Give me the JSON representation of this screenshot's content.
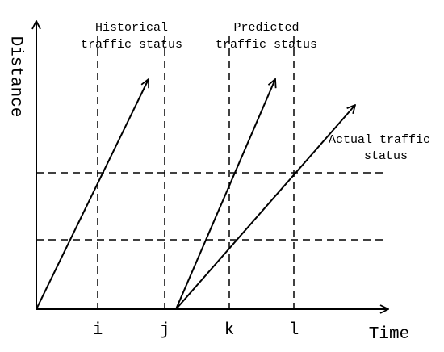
{
  "annotations": [
    {
      "lines": [
        "Historical",
        "traffic status"
      ]
    },
    {
      "lines": [
        "Predicted",
        "traffic status"
      ]
    },
    {
      "lines": [
        "Actual traffic",
        "status"
      ]
    }
  ],
  "axes": {
    "y_label": "Distance",
    "x_label": "Time",
    "x_ticks": [
      "i",
      "j",
      "k",
      "l"
    ]
  }
}
